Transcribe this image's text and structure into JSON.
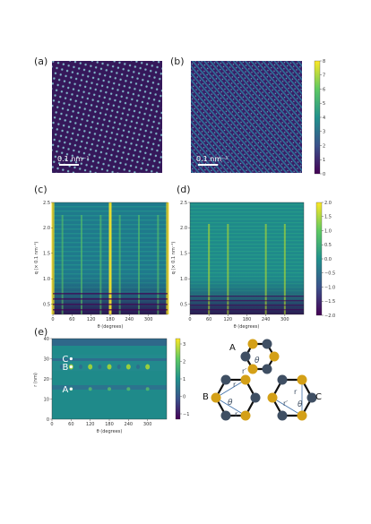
{
  "panels": {
    "a": {
      "label": "(a)",
      "scalebar": "0.1 nm⁻¹"
    },
    "b": {
      "label": "(b)",
      "scalebar": "0.1 nm⁻¹"
    },
    "c": {
      "label": "(c)"
    },
    "d": {
      "label": "(d)"
    },
    "e": {
      "label": "(e)"
    }
  },
  "colorbar_ab": {
    "ticks": [
      "0",
      "1",
      "2",
      "3",
      "4",
      "5",
      "6",
      "7",
      "8"
    ],
    "min": 0,
    "max": 8
  },
  "colorbar_cd": {
    "ticks": [
      "2.0",
      "1.5",
      "1.0",
      "0.5",
      "0.0",
      "−0.5",
      "−1.0",
      "−1.5",
      "−2.0"
    ],
    "min": -2,
    "max": 2
  },
  "colorbar_e": {
    "ticks": [
      "3",
      "2",
      "1",
      "0",
      "−1"
    ],
    "min": -1.5,
    "max": 3.3
  },
  "colors": {
    "viridis_low": "#440154",
    "viridis_mid": "#21918c",
    "viridis_high": "#fde725",
    "gold": "#d4a017",
    "slate": "#3f4f63"
  },
  "chart_data": [
    {
      "type": "heatmap",
      "panel": "c",
      "xlabel": "θ (degrees)",
      "ylabel": "q (× 0.1 nm⁻¹)",
      "xticks": [
        "0",
        "60",
        "120",
        "180",
        "240",
        "300"
      ],
      "yticks": [
        "0.5",
        "1.0",
        "1.5",
        "2.0",
        "2.5"
      ],
      "xlim": [
        0,
        360
      ],
      "ylim": [
        0.3,
        2.5
      ]
    },
    {
      "type": "heatmap",
      "panel": "d",
      "xlabel": "θ (degrees)",
      "ylabel": "q (× 0.1 nm⁻¹)",
      "xticks": [
        "0",
        "60",
        "120",
        "180",
        "240",
        "300"
      ],
      "yticks": [
        "0.5",
        "1.0",
        "1.5",
        "2.0",
        "2.5"
      ],
      "xlim": [
        0,
        360
      ],
      "ylim": [
        0.3,
        2.5
      ]
    },
    {
      "type": "heatmap",
      "panel": "e",
      "xlabel": "θ (degrees)",
      "ylabel": "r (nm)",
      "xticks": [
        "0",
        "60",
        "120",
        "180",
        "240",
        "300"
      ],
      "yticks": [
        "0",
        "10",
        "20",
        "30",
        "40"
      ],
      "xlim": [
        0,
        360
      ],
      "ylim": [
        0,
        40
      ],
      "markers": [
        {
          "label": "C",
          "theta": 60,
          "r": 30
        },
        {
          "label": "B",
          "theta": 60,
          "r": 26
        },
        {
          "label": "A",
          "theta": 60,
          "r": 15
        }
      ]
    }
  ],
  "diagram": {
    "hexA": {
      "label": "A",
      "r": "r",
      "r2": "r′",
      "angle": "θ"
    },
    "hexB": {
      "label": "B",
      "r": "r",
      "r2": "r",
      "angle": "θ"
    },
    "hexC": {
      "label": "C",
      "r": "r",
      "r2": "r′",
      "angle": "θ"
    }
  }
}
